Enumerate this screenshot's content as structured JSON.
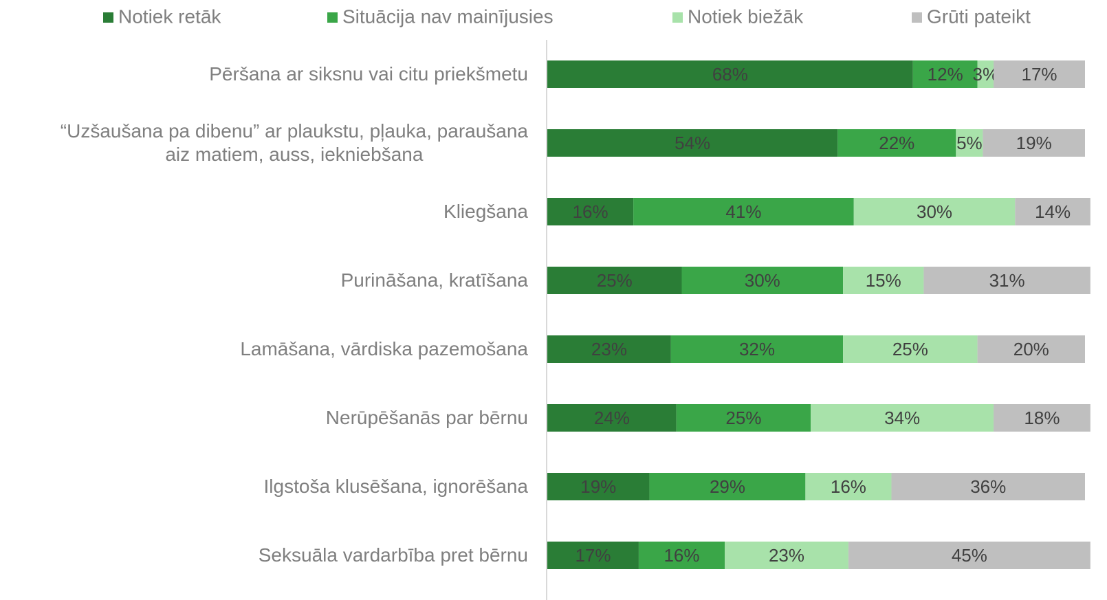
{
  "chart_data": {
    "type": "stacked_bar_horizontal",
    "categories": [
      "Pēršana ar siksnu vai citu priekšmetu",
      "“Uzšaušana pa dibenu” ar plaukstu, pļauka, paraušana\naiz matiem, auss, iekniebšana",
      "Kliegšana",
      "Purināšana, kratīšana",
      "Lamāšana, vārdiska pazemošana",
      "Nerūpēšanās par bērnu",
      "Ilgstoša klusēšana, ignorēšana",
      "Seksuāla vardarbība pret bērnu"
    ],
    "series": [
      {
        "name": "Notiek retāk",
        "color": "#2a7d36",
        "values": [
          68,
          54,
          16,
          25,
          23,
          24,
          19,
          17
        ],
        "value_labels": [
          "68%",
          "54%",
          "16%",
          "25%",
          "23%",
          "24%",
          "19%",
          "17%"
        ]
      },
      {
        "name": "Situācija nav mainījusies",
        "color": "#3aa648",
        "values": [
          12,
          22,
          41,
          30,
          32,
          25,
          29,
          16
        ],
        "value_labels": [
          "12%",
          "22%",
          "41%",
          "30%",
          "32%",
          "25%",
          "29%",
          "16%"
        ]
      },
      {
        "name": "Notiek biežāk",
        "color": "#a8e2aa",
        "values": [
          3,
          5,
          30,
          15,
          25,
          34,
          16,
          23
        ],
        "value_labels": [
          "3%",
          "5%",
          "30%",
          "15%",
          "25%",
          "34%",
          "16%",
          "23%"
        ]
      },
      {
        "name": "Grūti pateikt",
        "color": "#bfbfbf",
        "values": [
          17,
          19,
          14,
          31,
          20,
          18,
          36,
          45
        ],
        "value_labels": [
          "17%",
          "19%",
          "14%",
          "31%",
          "20%",
          "18%",
          "36%",
          "45%"
        ]
      }
    ],
    "legend": "top"
  }
}
